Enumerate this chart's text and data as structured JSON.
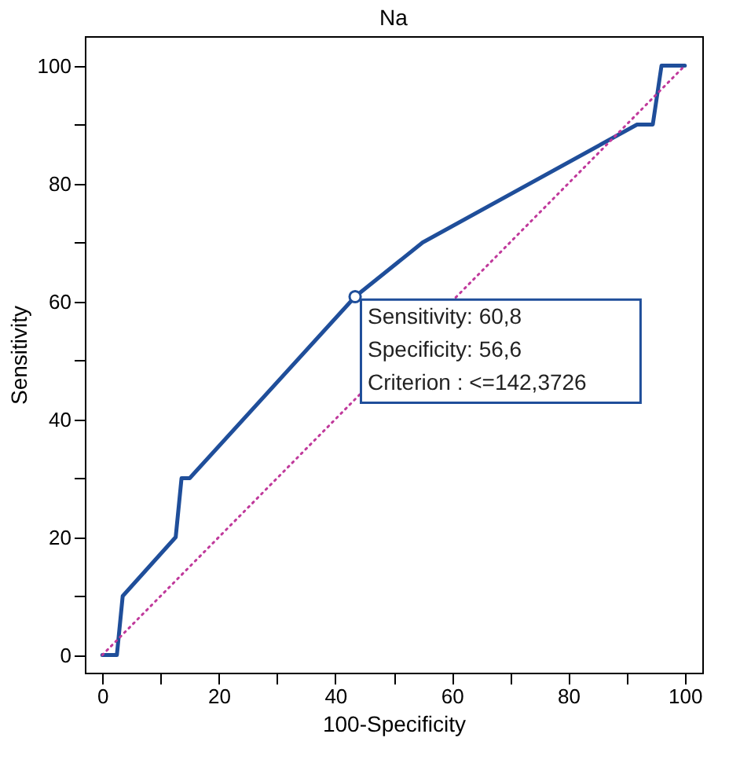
{
  "chart_data": {
    "type": "line",
    "title": "Na",
    "xlabel": "100-Specificity",
    "ylabel": "Sensitivity",
    "xlim": [
      -3,
      103
    ],
    "ylim": [
      -3,
      105
    ],
    "xticks": [
      0,
      {
        "value": 10,
        "label": null
      },
      20,
      {
        "value": 30,
        "label": null
      },
      40,
      {
        "value": 50,
        "label": null
      },
      60,
      {
        "value": 70,
        "label": null
      },
      80,
      {
        "value": 90,
        "label": null
      },
      100
    ],
    "yticks": [
      0,
      {
        "value": 10,
        "label": null
      },
      20,
      {
        "value": 30,
        "label": null
      },
      40,
      {
        "value": 50,
        "label": null
      },
      60,
      {
        "value": 70,
        "label": null
      },
      80,
      {
        "value": 90,
        "label": null
      },
      100
    ],
    "grid": false,
    "series": [
      {
        "color": "#1f4e9a",
        "line_style": "solid",
        "x": [
          0,
          2.5,
          3.5,
          12.6,
          13.6,
          15,
          43.4,
          55,
          91.8,
          94.5,
          96,
          100
        ],
        "values": [
          0,
          0,
          10,
          20,
          30,
          30,
          60.8,
          70,
          90,
          90,
          100,
          100
        ]
      },
      {
        "color": "#c0399b",
        "line_style": "dotted",
        "x": [
          0,
          100
        ],
        "values": [
          0,
          100
        ]
      }
    ],
    "annotations": [
      {
        "text": "Sensitivity: 60,8\nSpecificity: 56,6\nCriterion : <=142,3726",
        "x": 43.4,
        "y": 60.8
      }
    ]
  }
}
